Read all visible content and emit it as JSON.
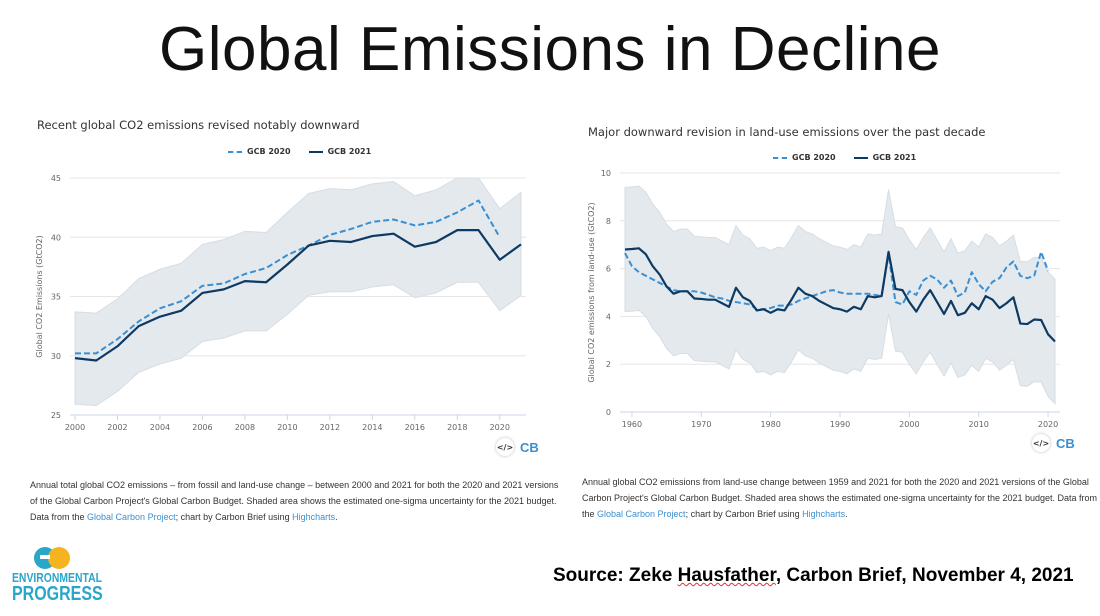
{
  "slide_title": "Global Emissions in Decline",
  "source": {
    "prefix": "Source: Zeke ",
    "name": "Hausfather",
    "suffix": ", Carbon Brief, November 4, 2021"
  },
  "logo": {
    "line1": "ENVIRONMENTAL",
    "line2": "PROGRESS"
  },
  "colors": {
    "gcb2020": "#3a8fd1",
    "gcb2021": "#0d3a63",
    "band": "#e4e9ee",
    "link": "#3a8fd1"
  },
  "charts": [
    {
      "title": "Recent global CO2 emissions revised notably downward",
      "legend": [
        "GCB 2020",
        "GCB 2021"
      ],
      "caption": {
        "text": "Annual total global CO2 emissions – from fossil and land-use change – between 2000 and 2021 for both the 2020 and 2021 versions of the Global Carbon Project's Global Carbon Budget. Shaded area shows the estimated one-sigma uncertainty for the 2021 budget. Data from the ",
        "link1": "Global Carbon Project",
        "mid": "; chart by Carbon Brief using ",
        "link2": "Highcharts",
        "end": "."
      },
      "embed_label": "</>",
      "brand": "CB"
    },
    {
      "title": "Major downward revision in land-use emissions over the past decade",
      "legend": [
        "GCB 2020",
        "GCB 2021"
      ],
      "caption": {
        "text": "Annual global CO2 emissions from land-use change between 1959 and 2021 for both the 2020 and 2021 versions of the Global Carbon Project's Global Carbon Budget. Shaded area shows the estimated one-sigma uncertainty for the 2021 budget. Data from the ",
        "link1": "Global Carbon Project",
        "mid": "; chart by Carbon Brief using ",
        "link2": "Highcharts",
        "end": "."
      },
      "embed_label": "</>",
      "brand": "CB"
    }
  ],
  "chart_data": [
    {
      "type": "line",
      "title": "Recent global CO2 emissions revised notably downward",
      "xlabel": "",
      "ylabel": "Global CO2 Emissions (GtCO2)",
      "xlim": [
        2000,
        2021
      ],
      "ylim": [
        25,
        45
      ],
      "xticks": [
        2000,
        2002,
        2004,
        2006,
        2008,
        2010,
        2012,
        2014,
        2016,
        2018,
        2020
      ],
      "yticks": [
        25,
        30,
        35,
        40,
        45
      ],
      "grid": true,
      "legend_position": "top-center",
      "x_start": 2000,
      "series": [
        {
          "name": "GCB 2020",
          "style": "dashed",
          "values": [
            30.2,
            30.2,
            31.4,
            32.9,
            34.0,
            34.6,
            35.9,
            36.1,
            36.9,
            37.4,
            38.5,
            39.3,
            40.2,
            40.7,
            41.3,
            41.5,
            41.0,
            41.3,
            42.1,
            43.1,
            40.0
          ]
        },
        {
          "name": "GCB 2021",
          "style": "solid",
          "values": [
            29.8,
            29.6,
            30.8,
            32.5,
            33.3,
            33.8,
            35.3,
            35.6,
            36.3,
            36.2,
            37.7,
            39.3,
            39.7,
            39.6,
            40.1,
            40.3,
            39.2,
            39.6,
            40.6,
            40.6,
            38.1,
            39.4
          ]
        }
      ],
      "band": {
        "upper": [
          33.7,
          33.6,
          34.8,
          36.5,
          37.3,
          37.8,
          39.4,
          39.8,
          40.5,
          40.4,
          42.1,
          43.7,
          44.1,
          44.0,
          44.5,
          44.7,
          43.5,
          44.0,
          45.0,
          45.0,
          42.4,
          43.8
        ],
        "lower": [
          25.9,
          25.8,
          27.0,
          28.6,
          29.3,
          29.8,
          31.2,
          31.5,
          32.1,
          32.1,
          33.5,
          35.1,
          35.4,
          35.4,
          35.8,
          36.0,
          34.9,
          35.3,
          36.2,
          36.2,
          33.8,
          35.1
        ]
      }
    },
    {
      "type": "line",
      "title": "Major downward revision in land-use emissions over the past decade",
      "xlabel": "",
      "ylabel": "Global CO2 emissions from land-use (GtCO2)",
      "xlim": [
        1959,
        2021
      ],
      "ylim": [
        0,
        10
      ],
      "xticks": [
        1960,
        1970,
        1980,
        1990,
        2000,
        2010,
        2020
      ],
      "yticks": [
        0,
        2,
        4,
        6,
        8,
        10
      ],
      "grid": true,
      "legend_position": "top-center",
      "x_start": 1959,
      "series": [
        {
          "name": "GCB 2020",
          "style": "dashed",
          "values": [
            6.65,
            6.1,
            5.85,
            5.7,
            5.55,
            5.4,
            5.25,
            5.1,
            5.05,
            5.05,
            5.05,
            5.0,
            4.9,
            4.8,
            4.75,
            4.65,
            4.6,
            4.55,
            4.5,
            4.3,
            4.3,
            4.35,
            4.45,
            4.45,
            4.5,
            4.65,
            4.75,
            4.85,
            4.95,
            5.05,
            5.1,
            5.0,
            4.95,
            4.95,
            4.95,
            4.95,
            4.9,
            4.85,
            6.6,
            4.6,
            4.5,
            5.05,
            4.9,
            5.5,
            5.7,
            5.55,
            5.2,
            5.5,
            4.85,
            5.0,
            5.85,
            5.35,
            5.05,
            5.45,
            5.6,
            6.05,
            6.3,
            5.7,
            5.6,
            5.7,
            6.7,
            5.9
          ]
        },
        {
          "name": "GCB 2021",
          "style": "solid",
          "values": [
            6.8,
            6.82,
            6.85,
            6.6,
            6.1,
            5.75,
            5.25,
            4.95,
            5.05,
            5.05,
            4.75,
            4.73,
            4.7,
            4.7,
            4.55,
            4.4,
            5.2,
            4.8,
            4.65,
            4.25,
            4.3,
            4.15,
            4.3,
            4.25,
            4.7,
            5.2,
            4.95,
            4.85,
            4.65,
            4.5,
            4.35,
            4.3,
            4.2,
            4.4,
            4.3,
            4.85,
            4.8,
            4.85,
            6.7,
            5.15,
            5.1,
            4.6,
            4.2,
            4.7,
            5.1,
            4.6,
            4.1,
            4.65,
            4.05,
            4.15,
            4.55,
            4.3,
            4.85,
            4.7,
            4.35,
            4.55,
            4.8,
            3.7,
            3.68,
            3.87,
            3.85,
            3.25,
            2.95
          ]
        }
      ],
      "band": {
        "halfwidth": 2.6
      }
    }
  ]
}
